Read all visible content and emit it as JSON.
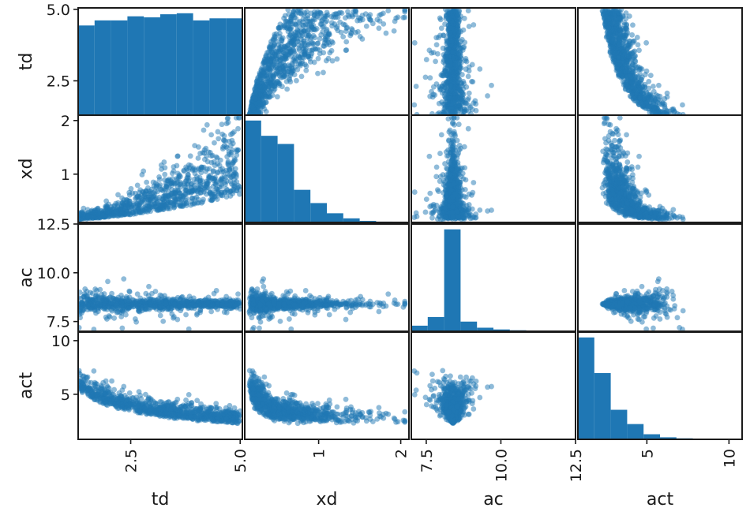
{
  "chart_data": {
    "type": "scatter",
    "title": "",
    "matrix_type": "scatter_matrix",
    "diagonal": "hist",
    "variables": [
      "td",
      "xd",
      "ac",
      "act"
    ],
    "marker_color": "#1f77b4",
    "marker_alpha": 0.5,
    "grid": false,
    "axes": {
      "td": {
        "range": [
          1.3,
          5.05
        ],
        "ticks": [
          2.5,
          5.0
        ],
        "tick_labels": [
          "2.5",
          "5.0"
        ]
      },
      "xd": {
        "range": [
          0.1,
          2.1
        ],
        "ticks": [
          1,
          2
        ],
        "tick_labels": [
          "1",
          "2"
        ]
      },
      "ac": {
        "range": [
          7.0,
          12.5
        ],
        "ticks": [
          7.5,
          10.0,
          12.5
        ],
        "tick_labels": [
          "7.5",
          "10.0",
          "12.5"
        ]
      },
      "act": {
        "range": [
          0.8,
          10.8
        ],
        "ticks": [
          5,
          10
        ],
        "tick_labels": [
          "5",
          "10"
        ]
      }
    },
    "histograms": {
      "td": {
        "bin_edges": [
          1.3,
          1.675,
          2.05,
          2.425,
          2.8,
          3.175,
          3.55,
          3.925,
          4.3,
          4.675,
          5.05
        ],
        "counts": [
          880,
          930,
          930,
          970,
          960,
          990,
          1000,
          930,
          950,
          950
        ]
      },
      "xd": {
        "bin_edges": [
          0.1,
          0.3,
          0.5,
          0.7,
          0.9,
          1.1,
          1.3,
          1.5,
          1.7,
          1.9,
          2.1
        ],
        "counts": [
          1000,
          850,
          770,
          320,
          190,
          90,
          40,
          15,
          8,
          4
        ]
      },
      "ac": {
        "bin_edges": [
          7.0,
          7.55,
          8.1,
          8.65,
          9.2,
          9.75,
          10.3,
          10.85,
          11.4,
          11.95,
          12.5
        ],
        "counts": [
          55,
          140,
          1000,
          95,
          35,
          18,
          10,
          6,
          4,
          3
        ]
      },
      "act": {
        "bin_edges": [
          0.8,
          1.8,
          2.8,
          3.8,
          4.8,
          5.8,
          6.8,
          7.8,
          8.8,
          9.8,
          10.8
        ],
        "counts": [
          1000,
          650,
          290,
          150,
          50,
          20,
          10,
          4,
          2,
          1
        ]
      }
    }
  }
}
